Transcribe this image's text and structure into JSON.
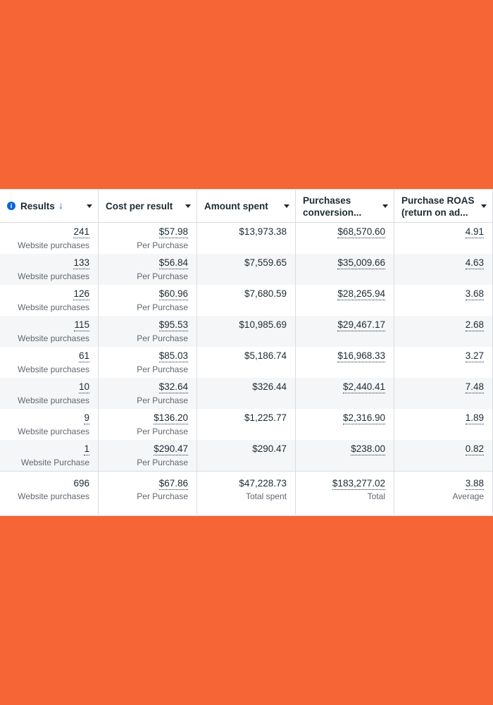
{
  "table": {
    "columns": [
      {
        "lines": [
          "Results"
        ],
        "sorted": true
      },
      {
        "lines": [
          "Cost per result"
        ]
      },
      {
        "lines": [
          "Amount spent"
        ]
      },
      {
        "lines": [
          "Purchases",
          "conversion..."
        ]
      },
      {
        "lines": [
          "Purchase ROAS",
          "(return on ad..."
        ]
      }
    ],
    "rows": [
      [
        {
          "value": "241",
          "sub": "Website purchases"
        },
        {
          "value": "$57.98",
          "sub": "Per Purchase"
        },
        {
          "value": "$13,973.38"
        },
        {
          "value": "$68,570.60"
        },
        {
          "value": "4.91"
        }
      ],
      [
        {
          "value": "133",
          "sub": "Website purchases"
        },
        {
          "value": "$56.84",
          "sub": "Per Purchase"
        },
        {
          "value": "$7,559.65"
        },
        {
          "value": "$35,009.66"
        },
        {
          "value": "4.63"
        }
      ],
      [
        {
          "value": "126",
          "sub": "Website purchases"
        },
        {
          "value": "$60.96",
          "sub": "Per Purchase"
        },
        {
          "value": "$7,680.59"
        },
        {
          "value": "$28,265.94"
        },
        {
          "value": "3.68"
        }
      ],
      [
        {
          "value": "115",
          "sub": "Website purchases"
        },
        {
          "value": "$95.53",
          "sub": "Per Purchase"
        },
        {
          "value": "$10,985.69"
        },
        {
          "value": "$29,467.17"
        },
        {
          "value": "2.68"
        }
      ],
      [
        {
          "value": "61",
          "sub": "Website purchases"
        },
        {
          "value": "$85.03",
          "sub": "Per Purchase"
        },
        {
          "value": "$5,186.74"
        },
        {
          "value": "$16,968.33"
        },
        {
          "value": "3.27"
        }
      ],
      [
        {
          "value": "10",
          "sub": "Website purchases"
        },
        {
          "value": "$32.64",
          "sub": "Per Purchase"
        },
        {
          "value": "$326.44"
        },
        {
          "value": "$2,440.41"
        },
        {
          "value": "7.48"
        }
      ],
      [
        {
          "value": "9",
          "sub": "Website purchases"
        },
        {
          "value": "$136.20",
          "sub": "Per Purchase"
        },
        {
          "value": "$1,225.77"
        },
        {
          "value": "$2,316.90"
        },
        {
          "value": "1.89"
        }
      ],
      [
        {
          "value": "1",
          "sub": "Website Purchase"
        },
        {
          "value": "$290.47",
          "sub": "Per Purchase"
        },
        {
          "value": "$290.47"
        },
        {
          "value": "$238.00"
        },
        {
          "value": "0.82"
        }
      ]
    ],
    "total": [
      {
        "value": "696",
        "sub": "Website purchases"
      },
      {
        "value": "$67.86",
        "sub": "Per Purchase"
      },
      {
        "value": "$47,228.73",
        "sub": "Total spent"
      },
      {
        "value": "$183,277.02",
        "sub": "Total"
      },
      {
        "value": "3.88",
        "sub": "Average"
      }
    ]
  }
}
